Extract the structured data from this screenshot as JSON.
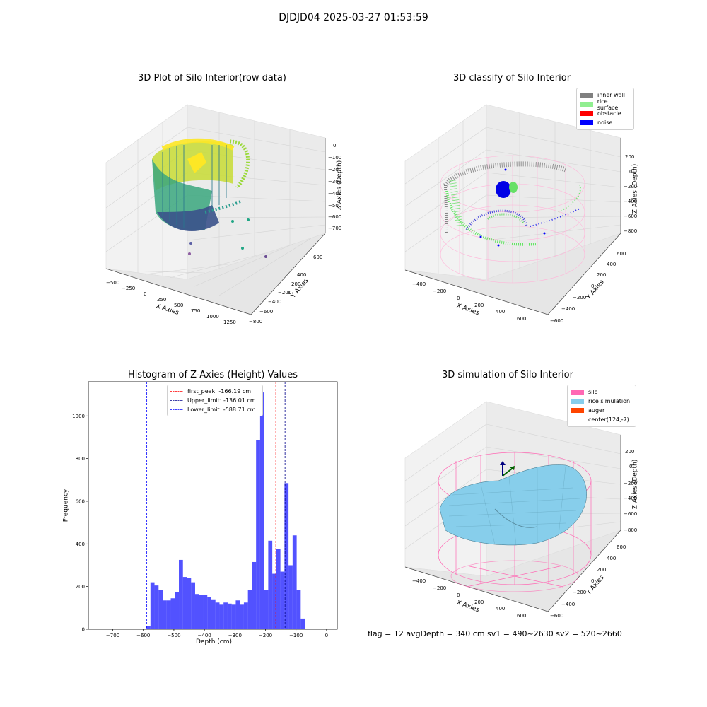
{
  "figure": {
    "suptitle": "DJDJD04 2025-03-27 01:53:59",
    "footer": "flag = 12   avgDepth = 340 cm  sv1 = 490~2630  sv2 = 520~2660"
  },
  "panels": {
    "raw": {
      "title": "3D Plot of Silo Interior(row data)",
      "xlabel": "X Axies",
      "ylabel": "Y Axies",
      "zlabel": "Z Axies (Depth)",
      "xticks": [
        "−500",
        "−250",
        "0",
        "250",
        "500",
        "750",
        "1000",
        "1250"
      ],
      "yticks": [
        "600",
        "400",
        "200",
        "0",
        "−200",
        "−400",
        "−600",
        "−800"
      ],
      "zticks": [
        "0",
        "−100",
        "−200",
        "−300",
        "−400",
        "−500",
        "−600",
        "−700"
      ]
    },
    "classify": {
      "title": "3D classify of Silo Interior",
      "xlabel": "X Axies",
      "ylabel": "Y Axies",
      "zlabel": "Z Axies (Depth)",
      "xticks": [
        "−400",
        "−200",
        "0",
        "200",
        "400",
        "600"
      ],
      "yticks": [
        "600",
        "400",
        "200",
        "0",
        "−200",
        "−400",
        "−600"
      ],
      "zticks": [
        "200",
        "0",
        "−200",
        "−400",
        "−600",
        "−800"
      ],
      "legend": [
        {
          "label": "inner wall",
          "color": "#808080"
        },
        {
          "label": "rice surface",
          "color": "#90ee90"
        },
        {
          "label": "obstacle",
          "color": "#ff0000"
        },
        {
          "label": "noise",
          "color": "#0000ff"
        }
      ]
    },
    "simulation": {
      "title": "3D simulation of Silo Interior",
      "xlabel": "X Axies",
      "ylabel": "Y Axies",
      "zlabel": "Z Axies (Depth)",
      "xticks": [
        "−400",
        "−200",
        "0",
        "200",
        "400",
        "600"
      ],
      "yticks": [
        "600",
        "400",
        "200",
        "0",
        "−200",
        "−400",
        "−600"
      ],
      "zticks": [
        "200",
        "0",
        "−200",
        "−400",
        "−600",
        "−800"
      ],
      "legend": [
        {
          "label": "silo",
          "color": "#ff69b4"
        },
        {
          "label": "rice simulation",
          "color": "#87ceeb"
        },
        {
          "label": "auger",
          "color": "#ff4500"
        },
        {
          "label": "center(124,-7)",
          "color": "#ffffff"
        }
      ]
    }
  },
  "chart_data": {
    "type": "bar",
    "title": "Histogram of Z-Axies (Height) Values",
    "xlabel": "Depth (cm)",
    "ylabel": "Frequency",
    "xlim": [
      -780,
      35
    ],
    "ylim": [
      0,
      1160
    ],
    "xticks": [
      -700,
      -600,
      -500,
      -400,
      -300,
      -200,
      -100,
      0
    ],
    "yticks": [
      0,
      200,
      400,
      600,
      800,
      1000
    ],
    "bin_start": -590,
    "bin_width": 13.3,
    "values": [
      15,
      220,
      205,
      185,
      135,
      135,
      145,
      175,
      325,
      245,
      240,
      220,
      165,
      160,
      160,
      150,
      140,
      125,
      115,
      125,
      120,
      115,
      135,
      115,
      125,
      185,
      315,
      885,
      1110,
      185,
      415,
      260,
      375,
      270,
      685,
      300,
      440,
      185,
      50
    ],
    "bar_color": "#0000ff",
    "lines": [
      {
        "label": "first_peak: -166.19 cm",
        "x": -166.19,
        "color": "#ff0000"
      },
      {
        "label": "Upper_limit: -136.01 cm",
        "x": -136.01,
        "color": "#00008b"
      },
      {
        "label": "Lower_limit: -588.71 cm",
        "x": -588.71,
        "color": "#0000ff"
      }
    ]
  }
}
